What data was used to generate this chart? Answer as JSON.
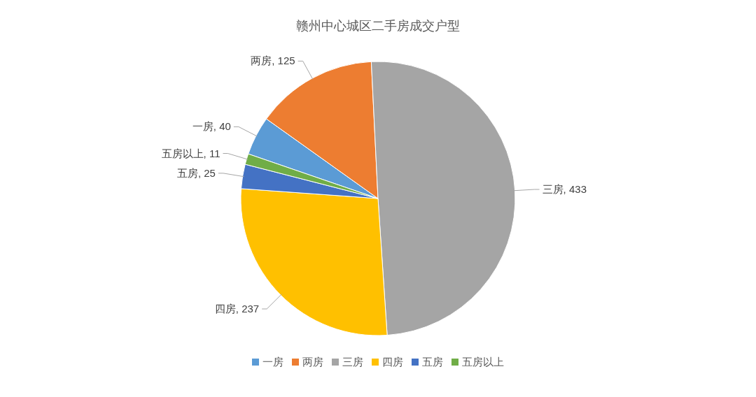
{
  "chart_data": {
    "type": "pie",
    "title": "赣州中心城区二手房成交户型",
    "categories": [
      "一房",
      "两房",
      "三房",
      "四房",
      "五房",
      "五房以上"
    ],
    "values": [
      40,
      125,
      433,
      237,
      25,
      11
    ],
    "value_labels": [
      "一房, 40",
      "两房, 125",
      "三房, 433",
      "四房, 237",
      "五房, 25",
      "五房以上, 11"
    ],
    "colors": [
      "#5b9bd5",
      "#ed7d31",
      "#a5a5a5",
      "#ffc000",
      "#4472c4",
      "#70ad47"
    ],
    "legend": "bottom"
  }
}
